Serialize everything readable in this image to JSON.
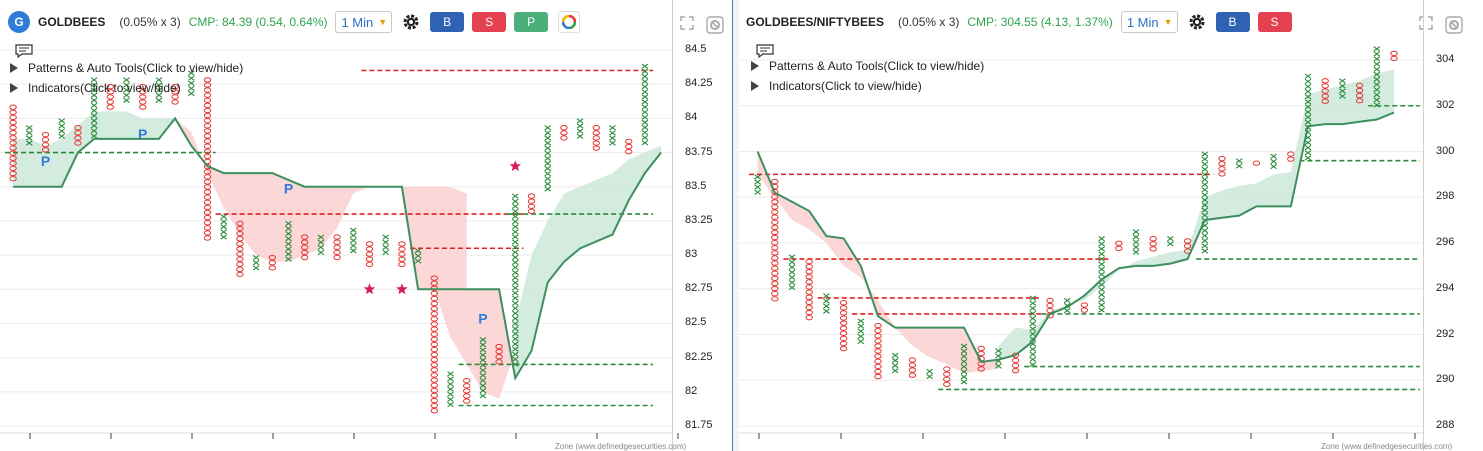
{
  "left": {
    "logo": "G",
    "symbol": "GOLDBEES",
    "box_size": "(0.05% x 3)",
    "cmp": "CMP: 84.39 (0.54, 0.64%)",
    "interval": "1 Min",
    "buttons": {
      "buy": "B",
      "sell": "S",
      "p": "P"
    },
    "toggles": {
      "patterns": "Patterns & Auto Tools(Click to view/hide)",
      "indicators": "Indicators(Click to view/hide)"
    },
    "price_labels": [
      "84.5",
      "84.25",
      "84",
      "83.75",
      "83.5",
      "83.25",
      "83",
      "82.75",
      "82.5",
      "82.25",
      "82",
      "81.75"
    ],
    "pattern_markers": [
      "P",
      "P",
      "P",
      "P"
    ],
    "footer": "Zone (www.definedgesecurities.com)"
  },
  "right": {
    "symbol": "GOLDBEES/NIFTYBEES",
    "box_size": "(0.05% x 3)",
    "cmp": "CMP: 304.55 (4.13, 1.37%)",
    "interval": "1 Min",
    "buttons": {
      "buy": "B",
      "sell": "S"
    },
    "toggles": {
      "patterns": "Patterns & Auto Tools(Click to view/hide)",
      "indicators": "Indicators(Click to view/hide)"
    },
    "price_labels": [
      "304",
      "302",
      "300",
      "298",
      "296",
      "294",
      "292",
      "290",
      "288"
    ],
    "footer": "Zone (www.definedgesecurities.com)"
  },
  "icons": [
    "settings-gear-icon",
    "color-ring-icon",
    "expand-icon",
    "chart-settings-icon",
    "comment-icon",
    "triangle-right-icon",
    "star-icon"
  ],
  "colors": {
    "x_column": "#2a8c3a",
    "o_column": "#e53935",
    "cloud_green": "#cfe9dc",
    "cloud_red": "#fbd3d3",
    "line": "#3d8f5e",
    "accent_blue": "#2f7bd8"
  },
  "chart_data": [
    {
      "type": "point-and-figure",
      "symbol": "GOLDBEES",
      "ylim": [
        81.75,
        84.5
      ],
      "y_ticks": [
        84.5,
        84.25,
        84,
        83.75,
        83.5,
        83.25,
        83,
        82.75,
        82.5,
        82.25,
        82,
        81.75
      ],
      "columns": [
        {
          "t": "O",
          "lo": 83.55,
          "hi": 84.1
        },
        {
          "t": "X",
          "lo": 83.8,
          "hi": 83.95
        },
        {
          "t": "O",
          "lo": 83.75,
          "hi": 83.9
        },
        {
          "t": "X",
          "lo": 83.85,
          "hi": 84.0
        },
        {
          "t": "O",
          "lo": 83.8,
          "hi": 83.95
        },
        {
          "t": "X",
          "lo": 83.85,
          "hi": 84.3
        },
        {
          "t": "O",
          "lo": 84.05,
          "hi": 84.25
        },
        {
          "t": "X",
          "lo": 84.1,
          "hi": 84.3
        },
        {
          "t": "O",
          "lo": 84.05,
          "hi": 84.25
        },
        {
          "t": "X",
          "lo": 84.1,
          "hi": 84.3
        },
        {
          "t": "O",
          "lo": 84.1,
          "hi": 84.25
        },
        {
          "t": "X",
          "lo": 84.15,
          "hi": 84.35
        },
        {
          "t": "O",
          "lo": 83.1,
          "hi": 84.3
        },
        {
          "t": "X",
          "lo": 83.1,
          "hi": 83.3
        },
        {
          "t": "O",
          "lo": 82.85,
          "hi": 83.25
        },
        {
          "t": "X",
          "lo": 82.9,
          "hi": 83.0
        },
        {
          "t": "O",
          "lo": 82.9,
          "hi": 83.0
        },
        {
          "t": "X",
          "lo": 82.95,
          "hi": 83.25
        },
        {
          "t": "O",
          "lo": 82.95,
          "hi": 83.15
        },
        {
          "t": "X",
          "lo": 83.0,
          "hi": 83.15
        },
        {
          "t": "O",
          "lo": 82.95,
          "hi": 83.15
        },
        {
          "t": "X",
          "lo": 83.0,
          "hi": 83.2
        },
        {
          "t": "O",
          "lo": 82.9,
          "hi": 83.1
        },
        {
          "t": "X",
          "lo": 83.0,
          "hi": 83.15
        },
        {
          "t": "O",
          "lo": 82.9,
          "hi": 83.1
        },
        {
          "t": "X",
          "lo": 82.95,
          "hi": 83.05
        },
        {
          "t": "O",
          "lo": 81.85,
          "hi": 82.85
        },
        {
          "t": "X",
          "lo": 81.9,
          "hi": 82.15
        },
        {
          "t": "O",
          "lo": 81.9,
          "hi": 82.1
        },
        {
          "t": "X",
          "lo": 81.95,
          "hi": 82.4
        },
        {
          "t": "O",
          "lo": 82.2,
          "hi": 82.35
        },
        {
          "t": "X",
          "lo": 82.2,
          "hi": 83.45
        },
        {
          "t": "O",
          "lo": 83.3,
          "hi": 83.45
        },
        {
          "t": "X",
          "lo": 83.45,
          "hi": 83.95
        },
        {
          "t": "O",
          "lo": 83.85,
          "hi": 83.95
        },
        {
          "t": "X",
          "lo": 83.85,
          "hi": 84.0
        },
        {
          "t": "O",
          "lo": 83.75,
          "hi": 83.95
        },
        {
          "t": "X",
          "lo": 83.8,
          "hi": 83.95
        },
        {
          "t": "O",
          "lo": 83.75,
          "hi": 83.85
        },
        {
          "t": "X",
          "lo": 83.8,
          "hi": 84.4
        }
      ],
      "trend_line": [
        83.5,
        83.5,
        83.5,
        83.5,
        83.75,
        83.85,
        83.85,
        83.85,
        83.85,
        83.85,
        84.0,
        83.8,
        83.65,
        83.6,
        83.6,
        83.6,
        83.6,
        83.55,
        83.5,
        83.5,
        83.5,
        83.5,
        83.5,
        83.5,
        83.5,
        82.75,
        82.75,
        82.75,
        82.75,
        82.75,
        82.75,
        82.1,
        82.3,
        82.8,
        82.95,
        83.05,
        83.1,
        83.15,
        83.4,
        83.6,
        83.75
      ],
      "cloud": [
        {
          "from": 0,
          "to": 10,
          "color": "green",
          "edge": [
            83.85,
            83.85,
            83.8,
            83.85,
            83.95,
            84.05,
            84.05,
            84.05,
            84.0,
            84.0,
            84.0
          ]
        },
        {
          "from": 10,
          "to": 28,
          "color": "red",
          "edge": [
            84.0,
            83.9,
            83.6,
            83.35,
            83.15,
            83.0,
            82.95,
            82.95,
            83.0,
            83.05,
            83.2,
            83.45,
            83.5,
            83.5,
            83.5,
            83.5,
            83.5,
            83.5,
            83.45
          ]
        },
        {
          "from": 25,
          "to": 31,
          "color": "red",
          "edge": [
            82.75,
            82.75,
            82.4,
            82.2,
            82.0,
            81.95,
            82.3
          ]
        },
        {
          "from": 31,
          "to": 40,
          "color": "green",
          "edge": [
            82.5,
            83.0,
            83.25,
            83.45,
            83.5,
            83.55,
            83.6,
            83.7,
            83.75,
            83.8
          ]
        }
      ],
      "support_lines": [
        {
          "y": 83.75,
          "from": 0,
          "to": 12
        },
        {
          "y": 82.2,
          "from": 28,
          "to": 39
        },
        {
          "y": 81.9,
          "from": 28,
          "to": 39
        },
        {
          "y": 83.3,
          "from": 31,
          "to": 39
        }
      ],
      "resistance_lines": [
        {
          "y": 84.35,
          "from": 22,
          "to": 39
        },
        {
          "y": 83.3,
          "from": 13,
          "to": 31
        },
        {
          "y": 83.05,
          "from": 25,
          "to": 31
        }
      ],
      "stars": [
        {
          "col": 22,
          "y": 82.75
        },
        {
          "col": 24,
          "y": 82.75
        },
        {
          "col": 31,
          "y": 83.65
        }
      ],
      "patterns_at": [
        {
          "col": 2,
          "y": 83.65
        },
        {
          "col": 8,
          "y": 83.85
        },
        {
          "col": 17,
          "y": 83.45
        },
        {
          "col": 29,
          "y": 82.5
        }
      ]
    },
    {
      "type": "point-and-figure",
      "symbol": "GOLDBEES/NIFTYBEES",
      "ylim": [
        288,
        304
      ],
      "y_ticks": [
        304,
        302,
        300,
        298,
        296,
        294,
        292,
        290,
        288
      ],
      "columns": [
        {
          "t": "X",
          "lo": 298.0,
          "hi": 299.0
        },
        {
          "t": "O",
          "lo": 293.5,
          "hi": 298.8
        },
        {
          "t": "X",
          "lo": 294.0,
          "hi": 295.5
        },
        {
          "t": "O",
          "lo": 292.7,
          "hi": 295.3
        },
        {
          "t": "X",
          "lo": 293.0,
          "hi": 293.8
        },
        {
          "t": "O",
          "lo": 291.2,
          "hi": 293.5
        },
        {
          "t": "X",
          "lo": 291.6,
          "hi": 292.7
        },
        {
          "t": "O",
          "lo": 290.1,
          "hi": 292.5
        },
        {
          "t": "X",
          "lo": 290.4,
          "hi": 291.2
        },
        {
          "t": "O",
          "lo": 290.0,
          "hi": 291.0
        },
        {
          "t": "X",
          "lo": 290.0,
          "hi": 290.5
        },
        {
          "t": "O",
          "lo": 289.6,
          "hi": 290.6
        },
        {
          "t": "X",
          "lo": 289.9,
          "hi": 291.6
        },
        {
          "t": "O",
          "lo": 290.3,
          "hi": 291.5
        },
        {
          "t": "X",
          "lo": 290.6,
          "hi": 291.4
        },
        {
          "t": "O",
          "lo": 290.3,
          "hi": 291.2
        },
        {
          "t": "X",
          "lo": 290.6,
          "hi": 293.7
        },
        {
          "t": "O",
          "lo": 292.8,
          "hi": 293.6
        },
        {
          "t": "X",
          "lo": 293.0,
          "hi": 293.6
        },
        {
          "t": "O",
          "lo": 292.9,
          "hi": 293.4
        },
        {
          "t": "X",
          "lo": 293.0,
          "hi": 296.3
        },
        {
          "t": "O",
          "lo": 295.6,
          "hi": 296.1
        },
        {
          "t": "X",
          "lo": 295.4,
          "hi": 296.6
        },
        {
          "t": "O",
          "lo": 295.6,
          "hi": 296.3
        },
        {
          "t": "X",
          "lo": 295.8,
          "hi": 296.3
        },
        {
          "t": "O",
          "lo": 295.6,
          "hi": 296.2
        },
        {
          "t": "X",
          "lo": 295.6,
          "hi": 300.0
        },
        {
          "t": "O",
          "lo": 299.0,
          "hi": 299.8
        },
        {
          "t": "X",
          "lo": 299.2,
          "hi": 299.7
        },
        {
          "t": "O",
          "lo": 299.3,
          "hi": 299.6
        },
        {
          "t": "X",
          "lo": 299.2,
          "hi": 299.9
        },
        {
          "t": "O",
          "lo": 299.6,
          "hi": 300.0
        },
        {
          "t": "X",
          "lo": 299.6,
          "hi": 303.4
        },
        {
          "t": "O",
          "lo": 302.0,
          "hi": 303.2
        },
        {
          "t": "X",
          "lo": 302.4,
          "hi": 303.2
        },
        {
          "t": "O",
          "lo": 302.0,
          "hi": 303.0
        },
        {
          "t": "X",
          "lo": 302.0,
          "hi": 304.6
        },
        {
          "t": "O",
          "lo": 304.0,
          "hi": 304.4
        }
      ],
      "trend_line": [
        300.0,
        298.2,
        297.8,
        297.4,
        296.3,
        296.2,
        295.0,
        292.8,
        292.3,
        292.3,
        292.3,
        292.3,
        292.3,
        290.8,
        290.9,
        291.1,
        291.7,
        292.9,
        293.2,
        293.7,
        294.4,
        294.9,
        295.0,
        295.0,
        295.1,
        295.3,
        297.0,
        297.1,
        297.2,
        297.6,
        297.6,
        297.6,
        301.1,
        301.2,
        301.2,
        301.3,
        301.4,
        301.7
      ],
      "cloud": [
        {
          "from": 0,
          "to": 14,
          "color": "red",
          "edge": [
            299.0,
            298.0,
            297.0,
            296.6,
            296.0,
            295.0,
            294.5,
            293.5,
            292.3,
            291.5,
            291.0,
            290.7,
            290.3,
            290.4,
            290.5
          ]
        },
        {
          "from": 14,
          "to": 37,
          "color": "green",
          "edge": [
            291.5,
            292.3,
            292.2,
            293.0,
            293.3,
            293.5,
            294.1,
            294.8,
            295.2,
            295.4,
            295.6,
            295.7,
            298.0,
            298.3,
            298.5,
            298.6,
            299.0,
            299.1,
            302.5,
            302.7,
            302.9,
            303.1,
            303.4,
            303.6
          ]
        }
      ],
      "support_lines": [
        {
          "y": 295.3,
          "from": 26,
          "to": 38
        },
        {
          "y": 292.9,
          "from": 17,
          "to": 38
        },
        {
          "y": 290.6,
          "from": 16,
          "to": 38
        },
        {
          "y": 289.6,
          "from": 11,
          "to": 38
        },
        {
          "y": 299.6,
          "from": 32,
          "to": 38
        },
        {
          "y": 302.0,
          "from": 36,
          "to": 38
        }
      ],
      "resistance_lines": [
        {
          "y": 299.0,
          "from": 0,
          "to": 26
        },
        {
          "y": 295.3,
          "from": 2,
          "to": 20
        },
        {
          "y": 293.6,
          "from": 4,
          "to": 16
        },
        {
          "y": 292.9,
          "from": 6,
          "to": 16
        }
      ]
    }
  ]
}
